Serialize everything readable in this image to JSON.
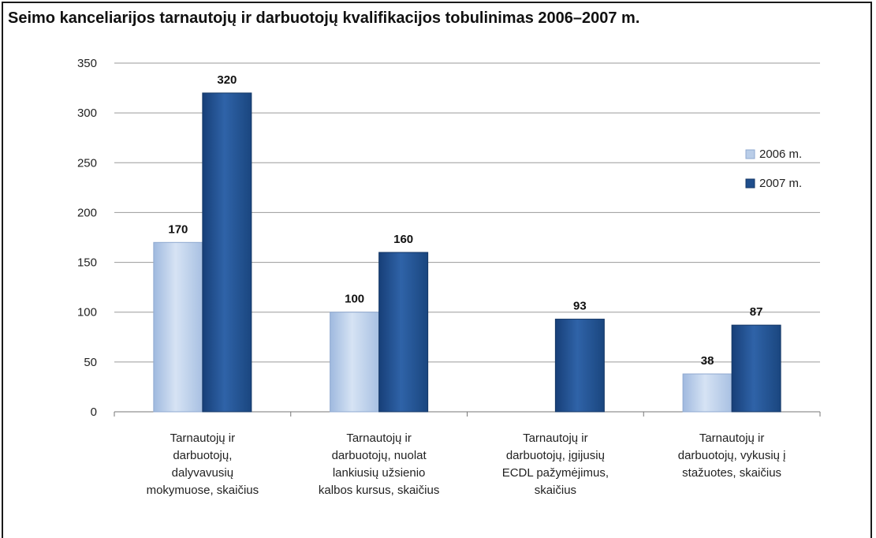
{
  "chart_data": {
    "type": "bar",
    "title": "Seimo kanceliarijos tarnautojų ir darbuotojų kvalifikacijos tobulinimas 2006–2007 m.",
    "categories": [
      [
        "Tarnautojų ir",
        "darbuotojų,",
        "dalyvavusių",
        "mokymuose, skaičius"
      ],
      [
        "Tarnautojų ir",
        "darbuotojų, nuolat",
        "lankiusių užsienio",
        "kalbos kursus, skaičius"
      ],
      [
        "Tarnautojų ir",
        "darbuotojų, įgijusių",
        "ECDL pažymėjimus,",
        "skaičius"
      ],
      [
        "Tarnautojų ir",
        "darbuotojų, vykusių į",
        "stažuotes, skaičius"
      ]
    ],
    "series": [
      {
        "name": "2006 m.",
        "color": "#b9cde8",
        "values": [
          170,
          100,
          null,
          38
        ]
      },
      {
        "name": "2007 m.",
        "color": "#1f4e8c",
        "values": [
          320,
          160,
          93,
          87
        ]
      }
    ],
    "ylim": [
      0,
      350
    ],
    "yticks": [
      0,
      50,
      100,
      150,
      200,
      250,
      300,
      350
    ],
    "grid": true,
    "legend_position": "right"
  }
}
